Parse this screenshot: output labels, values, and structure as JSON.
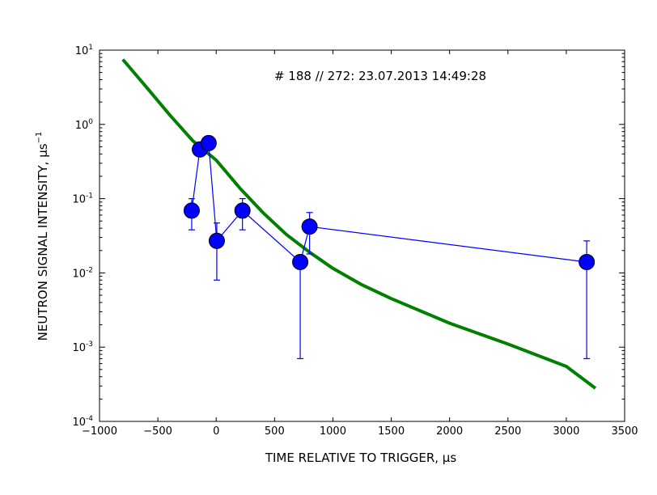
{
  "chart_data": {
    "type": "scatter",
    "title": "",
    "annotation": "# 188 // 272: 23.07.2013 14:49:28",
    "xlabel": "TIME RELATIVE TO TRIGGER, μs",
    "ylabel": "NEUTRON SIGNAL INTENSITY, μs",
    "ylabel_exponent": "−1",
    "xlim": [
      -1000,
      3500
    ],
    "ylim": [
      0.0001,
      10
    ],
    "yscale": "log",
    "grid": false,
    "legend": "none",
    "x_ticks": [
      -1000,
      -500,
      0,
      500,
      1000,
      1500,
      2000,
      2500,
      3000,
      3500
    ],
    "x_tick_labels": [
      "−1000",
      "−500",
      "0",
      "500",
      "1000",
      "1500",
      "2000",
      "2500",
      "3000",
      "3500"
    ],
    "y_ticks": [
      {
        "value": 10,
        "base": "10",
        "exp": "1"
      },
      {
        "value": 1,
        "base": "10",
        "exp": "0"
      },
      {
        "value": 0.1,
        "base": "10",
        "exp": "-1"
      },
      {
        "value": 0.01,
        "base": "10",
        "exp": "-2"
      },
      {
        "value": 0.001,
        "base": "10",
        "exp": "-3"
      },
      {
        "value": 0.0001,
        "base": "10",
        "exp": "-4"
      }
    ],
    "series": [
      {
        "style": "markers-with-errorbars",
        "color": "#0000ff",
        "points": [
          {
            "x": -210,
            "y": 0.069,
            "err_low": 0.038,
            "err_high": 0.1
          },
          {
            "x": -140,
            "y": 0.46,
            "err_low": 0.46,
            "err_high": 0.46
          },
          {
            "x": -65,
            "y": 0.56,
            "err_low": 0.56,
            "err_high": 0.56
          },
          {
            "x": 5,
            "y": 0.027,
            "err_low": 0.008,
            "err_high": 0.047
          },
          {
            "x": 225,
            "y": 0.069,
            "err_low": 0.038,
            "err_high": 0.1
          },
          {
            "x": 720,
            "y": 0.014,
            "err_low": 0.0007,
            "err_high": 0.014
          },
          {
            "x": 800,
            "y": 0.042,
            "err_low": 0.018,
            "err_high": 0.065
          },
          {
            "x": 3175,
            "y": 0.014,
            "err_low": 0.0007,
            "err_high": 0.027
          }
        ]
      },
      {
        "style": "line",
        "color": "#008000",
        "points": [
          {
            "x": -800,
            "y": 7.5
          },
          {
            "x": -600,
            "y": 3.2
          },
          {
            "x": -400,
            "y": 1.35
          },
          {
            "x": -200,
            "y": 0.6
          },
          {
            "x": 0,
            "y": 0.33
          },
          {
            "x": 200,
            "y": 0.14
          },
          {
            "x": 400,
            "y": 0.065
          },
          {
            "x": 600,
            "y": 0.033
          },
          {
            "x": 800,
            "y": 0.019
          },
          {
            "x": 1000,
            "y": 0.0115
          },
          {
            "x": 1250,
            "y": 0.0069
          },
          {
            "x": 1500,
            "y": 0.0045
          },
          {
            "x": 2000,
            "y": 0.0021
          },
          {
            "x": 2500,
            "y": 0.0011
          },
          {
            "x": 3000,
            "y": 0.00055
          },
          {
            "x": 3250,
            "y": 0.00028
          }
        ]
      }
    ]
  }
}
